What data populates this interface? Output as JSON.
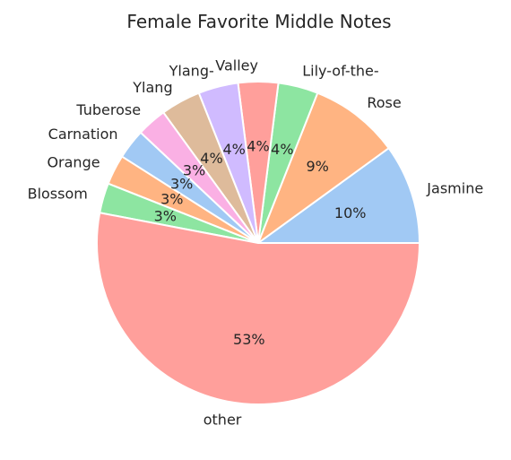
{
  "chart_data": {
    "type": "pie",
    "title": "Female Favorite Middle Notes",
    "slices": [
      {
        "label": "Jasmine",
        "label_lines": [
          "Jasmine"
        ],
        "value": 10,
        "pct_label": "10%",
        "color": "#a1c9f4"
      },
      {
        "label": "Rose",
        "label_lines": [
          "Rose"
        ],
        "value": 9,
        "pct_label": "9%",
        "color": "#ffb482"
      },
      {
        "label": "Lily-of-the-Valley",
        "label_lines": [
          "Lily-of-the-"
        ],
        "value": 4,
        "pct_label": "4%",
        "color": "#8de5a1"
      },
      {
        "label": "Valley",
        "label_lines": [
          "Valley"
        ],
        "value": 4,
        "pct_label": "4%",
        "color": "#ff9f9b"
      },
      {
        "label": "Ylang-",
        "label_lines": [
          "Ylang-"
        ],
        "value": 4,
        "pct_label": "4%",
        "color": "#d0bbff"
      },
      {
        "label": "Ylang",
        "label_lines": [
          "Ylang"
        ],
        "value": 4,
        "pct_label": "4%",
        "color": "#debb9b"
      },
      {
        "label": "Tuberose",
        "label_lines": [
          "Tuberose"
        ],
        "value": 3,
        "pct_label": "3%",
        "color": "#fab0e4"
      },
      {
        "label": "Carnation",
        "label_lines": [
          "Carnation"
        ],
        "value": 3,
        "pct_label": "3%",
        "color": "#a1c9f4"
      },
      {
        "label": "Orange",
        "label_lines": [
          "Orange"
        ],
        "value": 3,
        "pct_label": "3%",
        "color": "#ffb482"
      },
      {
        "label": "Blossom",
        "label_lines": [
          "Blossom"
        ],
        "value": 3,
        "pct_label": "3%",
        "color": "#8de5a1"
      },
      {
        "label": "other",
        "label_lines": [
          "other"
        ],
        "value": 53,
        "pct_label": "53%",
        "color": "#ff9f9b"
      }
    ]
  }
}
